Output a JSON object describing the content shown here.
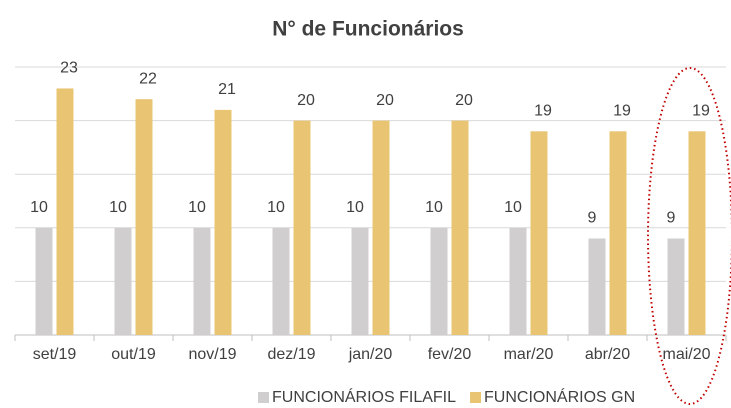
{
  "chart_data": {
    "type": "bar",
    "title": "N° de Funcionários",
    "categories": [
      "set/19",
      "out/19",
      "nov/19",
      "dez/19",
      "jan/20",
      "fev/20",
      "mar/20",
      "abr/20",
      "mai/20"
    ],
    "series": [
      {
        "name": "FUNCIONÁRIOS FILAFIL",
        "color": "#d0cece",
        "values": [
          10,
          10,
          10,
          10,
          10,
          10,
          10,
          9,
          9
        ]
      },
      {
        "name": "FUNCIONÁRIOS GN",
        "color": "#e8c473",
        "values": [
          23,
          22,
          21,
          20,
          20,
          20,
          19,
          19,
          19
        ]
      }
    ],
    "ylim": [
      0,
      25
    ],
    "yticks": [
      0,
      5,
      10,
      15,
      20,
      25
    ],
    "grid": true
  }
}
